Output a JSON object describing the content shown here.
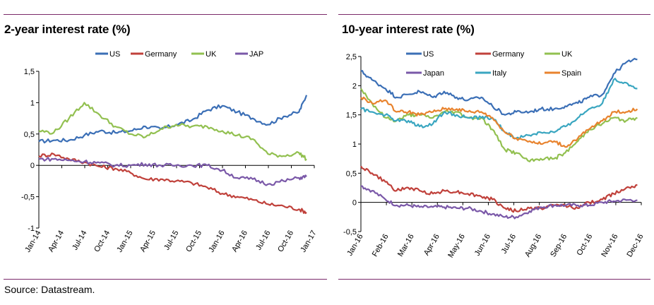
{
  "source": "Source: Datastream.",
  "colors": {
    "rule": "#7a2a6a"
  },
  "chart_data": [
    {
      "type": "line",
      "title": "2-year interest rate (%)",
      "xlabel": "",
      "ylabel": "",
      "ylim": [
        -1,
        1.5
      ],
      "yticks": [
        "-1",
        "-0,5",
        "0",
        "0,5",
        "1",
        "1,5"
      ],
      "ytick_values": [
        -1,
        -0.5,
        0,
        0.5,
        1,
        1.5
      ],
      "xticks": [
        "Jan-14",
        "Apr-14",
        "Jul-14",
        "Oct-14",
        "Jan-15",
        "Apr-15",
        "Jul-15",
        "Oct-15",
        "Jan-16",
        "Apr-16",
        "Jul-16",
        "Oct-16",
        "Jan-17"
      ],
      "legend_position": "top",
      "grid": false,
      "x_dates": [
        "2014-01",
        "2014-03",
        "2014-05",
        "2014-07",
        "2014-09",
        "2014-11",
        "2015-01",
        "2015-03",
        "2015-05",
        "2015-07",
        "2015-09",
        "2015-11",
        "2016-01",
        "2016-03",
        "2016-05",
        "2016-07",
        "2016-09",
        "2016-11",
        "2016-12"
      ],
      "series": [
        {
          "name": "US",
          "color": "#3b6fb6",
          "values": [
            0.38,
            0.4,
            0.4,
            0.48,
            0.55,
            0.52,
            0.55,
            0.62,
            0.58,
            0.65,
            0.72,
            0.88,
            0.95,
            0.85,
            0.75,
            0.65,
            0.78,
            0.85,
            1.12
          ]
        },
        {
          "name": "Germany",
          "color": "#c0413b",
          "values": [
            0.15,
            0.18,
            0.1,
            0.05,
            -0.02,
            -0.05,
            -0.12,
            -0.22,
            -0.22,
            -0.25,
            -0.28,
            -0.35,
            -0.45,
            -0.5,
            -0.55,
            -0.62,
            -0.65,
            -0.7,
            -0.75
          ]
        },
        {
          "name": "UK",
          "color": "#92c050",
          "values": [
            0.55,
            0.52,
            0.75,
            1.0,
            0.8,
            0.62,
            0.5,
            0.45,
            0.58,
            0.65,
            0.62,
            0.62,
            0.55,
            0.48,
            0.42,
            0.18,
            0.15,
            0.2,
            0.1
          ]
        },
        {
          "name": "JAP",
          "color": "#7a58a8",
          "values": [
            0.1,
            0.1,
            0.08,
            0.06,
            0.04,
            0.0,
            0.0,
            0.02,
            0.0,
            0.0,
            0.0,
            0.0,
            -0.08,
            -0.2,
            -0.22,
            -0.3,
            -0.25,
            -0.2,
            -0.18
          ]
        }
      ]
    },
    {
      "type": "line",
      "title": "10-year interest rate (%)",
      "xlabel": "",
      "ylabel": "",
      "ylim": [
        -0.5,
        2.5
      ],
      "yticks": [
        "-0,5",
        "0",
        "0,5",
        "1",
        "1,5",
        "2",
        "2,5"
      ],
      "ytick_values": [
        -0.5,
        0,
        0.5,
        1,
        1.5,
        2,
        2.5
      ],
      "xticks": [
        "Jan-16",
        "Feb-16",
        "Mar-16",
        "Apr-16",
        "May-16",
        "Jun-16",
        "Jul-16",
        "Aug-16",
        "Sep-16",
        "Oct-16",
        "Nov-16",
        "Dec-16"
      ],
      "legend_position": "top",
      "grid": false,
      "x_dates": [
        "2016-01-01",
        "2016-01-15",
        "2016-02-01",
        "2016-02-15",
        "2016-03-01",
        "2016-03-15",
        "2016-04-01",
        "2016-04-15",
        "2016-05-01",
        "2016-05-15",
        "2016-06-01",
        "2016-06-15",
        "2016-07-01",
        "2016-07-15",
        "2016-08-01",
        "2016-08-15",
        "2016-09-01",
        "2016-09-15",
        "2016-10-01",
        "2016-10-15",
        "2016-11-01",
        "2016-11-15",
        "2016-12-01",
        "2016-12-15"
      ],
      "series": [
        {
          "name": "US",
          "color": "#3b6fb6",
          "values": [
            2.25,
            2.1,
            1.95,
            1.8,
            1.85,
            1.9,
            1.8,
            1.9,
            1.8,
            1.75,
            1.8,
            1.65,
            1.5,
            1.55,
            1.55,
            1.6,
            1.6,
            1.65,
            1.7,
            1.8,
            1.85,
            2.2,
            2.4,
            2.45
          ]
        },
        {
          "name": "Germany",
          "color": "#c0413b",
          "values": [
            0.62,
            0.5,
            0.35,
            0.2,
            0.25,
            0.2,
            0.15,
            0.2,
            0.18,
            0.15,
            0.1,
            0.05,
            -0.1,
            -0.15,
            -0.1,
            -0.1,
            -0.05,
            -0.05,
            -0.1,
            0.0,
            0.05,
            0.15,
            0.25,
            0.3
          ]
        },
        {
          "name": "UK",
          "color": "#92c050",
          "values": [
            1.95,
            1.7,
            1.45,
            1.4,
            1.5,
            1.5,
            1.45,
            1.55,
            1.55,
            1.45,
            1.45,
            1.25,
            0.9,
            0.85,
            0.7,
            0.75,
            0.75,
            0.85,
            1.05,
            1.25,
            1.35,
            1.45,
            1.4,
            1.45
          ]
        },
        {
          "name": "Japan",
          "color": "#7a58a8",
          "values": [
            0.28,
            0.2,
            0.05,
            -0.05,
            -0.05,
            -0.08,
            -0.08,
            -0.08,
            -0.1,
            -0.1,
            -0.15,
            -0.2,
            -0.25,
            -0.25,
            -0.15,
            -0.08,
            -0.05,
            -0.05,
            -0.05,
            -0.05,
            0.0,
            0.02,
            0.04,
            0.04
          ]
        },
        {
          "name": "Italy",
          "color": "#3aa6c0",
          "values": [
            1.6,
            1.55,
            1.5,
            1.4,
            1.4,
            1.3,
            1.35,
            1.55,
            1.5,
            1.45,
            1.45,
            1.45,
            1.2,
            1.1,
            1.15,
            1.2,
            1.2,
            1.3,
            1.45,
            1.6,
            1.7,
            2.1,
            2.05,
            1.95
          ]
        },
        {
          "name": "Spain",
          "color": "#e8832e",
          "values": [
            1.8,
            1.7,
            1.75,
            1.55,
            1.55,
            1.5,
            1.55,
            1.6,
            1.6,
            1.55,
            1.55,
            1.45,
            1.2,
            1.1,
            1.05,
            1.0,
            1.05,
            0.95,
            1.1,
            1.25,
            1.4,
            1.55,
            1.55,
            1.6
          ]
        }
      ]
    }
  ]
}
